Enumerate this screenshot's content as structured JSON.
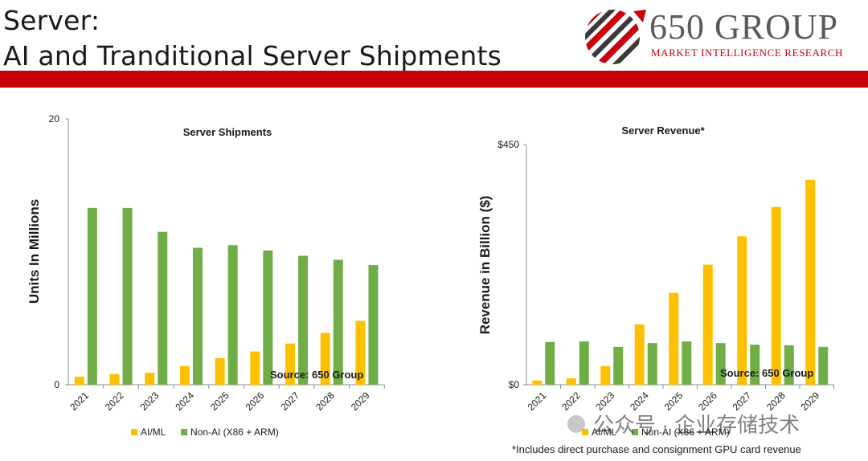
{
  "slide": {
    "title_line1": "Server:",
    "title_line2": "AI and Tranditional Server Shipments",
    "footnote": "*Includes direct purchase and consignment GPU card revenue"
  },
  "logo": {
    "name": "650 GROUP",
    "tagline": "MARKET INTELLIGENCE RESEARCH"
  },
  "watermark": "公众号 · 企业存储技术",
  "colors": {
    "ai_ml": "#ffc000",
    "non_ai": "#70ad47",
    "header_bar": "#c8000a"
  },
  "chart_data": [
    {
      "type": "bar",
      "title": "Server Shipments",
      "ylabel": "Units In Millions",
      "xlabel": "",
      "ylim": [
        0,
        20
      ],
      "yticks": [
        "0",
        "20"
      ],
      "categories": [
        "2021",
        "2022",
        "2023",
        "2024",
        "2025",
        "2026",
        "2027",
        "2028",
        "2029"
      ],
      "series": [
        {
          "name": "AI/ML",
          "values": [
            0.6,
            0.8,
            0.9,
            1.4,
            2.0,
            2.5,
            3.1,
            3.9,
            4.8
          ]
        },
        {
          "name": "Non-AI (X86 + ARM)",
          "values": [
            13.3,
            13.3,
            11.5,
            10.3,
            10.5,
            10.1,
            9.7,
            9.4,
            9.0
          ]
        }
      ],
      "annotation": "Source: 650 Group",
      "legend_position": "bottom",
      "grid": false
    },
    {
      "type": "bar",
      "title": "Server Revenue*",
      "ylabel": "Revenue in Billion ($)",
      "xlabel": "",
      "ylim": [
        0,
        450
      ],
      "yticks": [
        "$0",
        "$450"
      ],
      "categories": [
        "2021",
        "2022",
        "2023",
        "2024",
        "2025",
        "2026",
        "2027",
        "2028",
        "2029"
      ],
      "series": [
        {
          "name": "AI/ML",
          "values": [
            8,
            12,
            35,
            113,
            172,
            225,
            278,
            333,
            384
          ]
        },
        {
          "name": "Non-AI (X86 + ARM)",
          "values": [
            80,
            81,
            71,
            78,
            81,
            78,
            75,
            74,
            71
          ]
        }
      ],
      "annotation": "Source: 650 Group",
      "legend_position": "bottom",
      "grid": false
    }
  ]
}
